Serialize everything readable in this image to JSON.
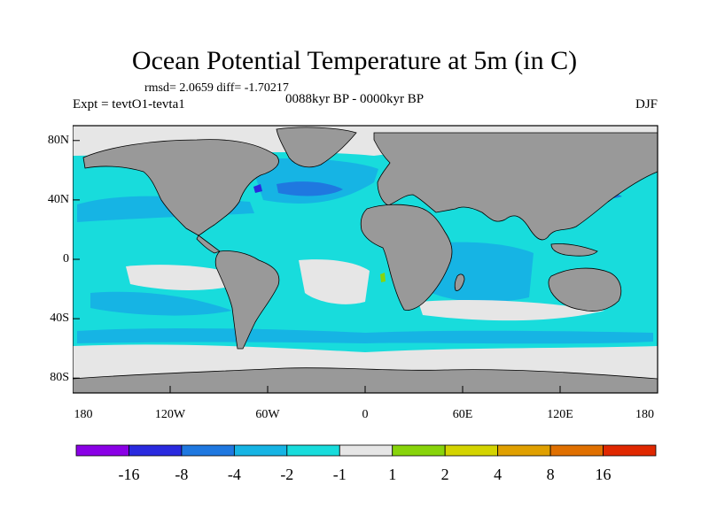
{
  "title": "Ocean Potential Temperature at 5m (in C)",
  "stats": "rmsd= 2.0659 diff= -1.70217",
  "experiment": "Expt = tevtO1-tevta1",
  "period": "0088kyr BP - 0000kyr BP",
  "season": "DJF",
  "map": {
    "x_ticks": [
      {
        "lon": -180,
        "label": "180"
      },
      {
        "lon": -120,
        "label": "120W"
      },
      {
        "lon": -60,
        "label": "60W"
      },
      {
        "lon": 0,
        "label": "0"
      },
      {
        "lon": 60,
        "label": "60E"
      },
      {
        "lon": 120,
        "label": "120E"
      },
      {
        "lon": 180,
        "label": "180"
      }
    ],
    "y_ticks": [
      {
        "lat": 80,
        "label": "80N"
      },
      {
        "lat": 40,
        "label": "40N"
      },
      {
        "lat": 0,
        "label": "0"
      },
      {
        "lat": -40,
        "label": "40S"
      },
      {
        "lat": -80,
        "label": "80S"
      }
    ],
    "lon_range": [
      -180,
      180
    ],
    "lat_range": [
      -90,
      90
    ],
    "land_color": "#999999",
    "colors": {
      "lt_neg16": "#8a00e6",
      "neg16_neg8": "#2a2adf",
      "neg8_neg4": "#1f78e0",
      "neg4_neg2": "#16b4e4",
      "neg2_neg1": "#18dcdc",
      "neg1_1": "#e6e6e6",
      "pos1_2": "#88d40b",
      "pos2_4": "#d4d400",
      "pos4_8": "#e0a000",
      "pos8_16": "#e07000",
      "gt_16": "#e02800"
    }
  },
  "colorbar": {
    "colors": [
      "#8a00e6",
      "#2a2adf",
      "#1f78e0",
      "#16b4e4",
      "#18dcdc",
      "#e6e6e6",
      "#88d40b",
      "#d4d400",
      "#e0a000",
      "#e07000",
      "#e02800"
    ],
    "labels": [
      "-16",
      "-8",
      "-4",
      "-2",
      "-1",
      "1",
      "2",
      "4",
      "8",
      "16"
    ]
  }
}
